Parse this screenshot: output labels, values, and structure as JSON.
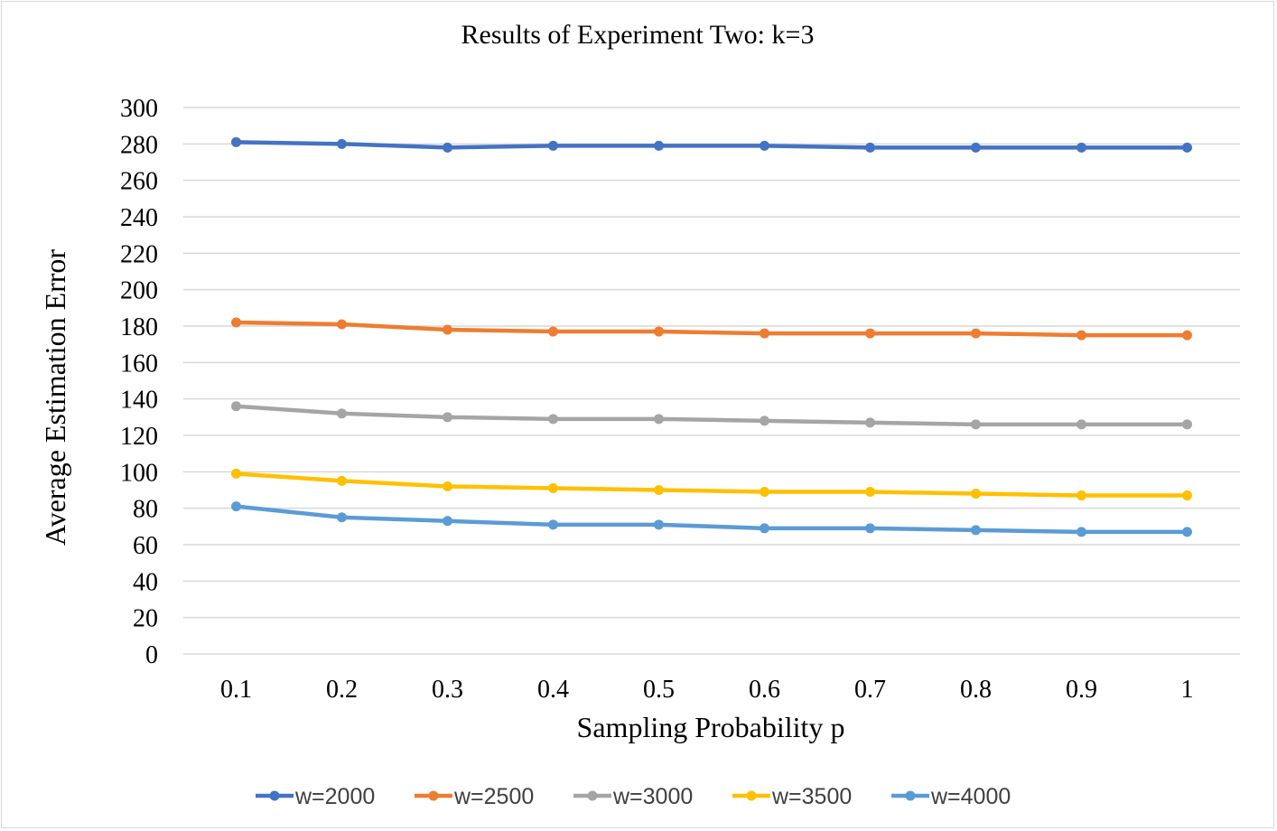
{
  "chart_data": {
    "type": "line",
    "title": "Results of Experiment Two: k=3",
    "xlabel": "Sampling Probability p",
    "ylabel": "Average Estimation Error",
    "categories": [
      "0.1",
      "0.2",
      "0.3",
      "0.4",
      "0.5",
      "0.6",
      "0.7",
      "0.8",
      "0.9",
      "1"
    ],
    "ylim": [
      0,
      300
    ],
    "yticks": [
      "0",
      "20",
      "40",
      "60",
      "80",
      "100",
      "120",
      "140",
      "160",
      "180",
      "200",
      "220",
      "240",
      "260",
      "280",
      "300"
    ],
    "grid": true,
    "legend_position": "bottom",
    "series": [
      {
        "name": "w=2000",
        "color": "#4472c4",
        "values": [
          281,
          280,
          278,
          279,
          279,
          279,
          278,
          278,
          278,
          278
        ]
      },
      {
        "name": "w=2500",
        "color": "#ed7d31",
        "values": [
          182,
          181,
          178,
          177,
          177,
          176,
          176,
          176,
          175,
          175
        ]
      },
      {
        "name": "w=3000",
        "color": "#a5a5a5",
        "values": [
          136,
          132,
          130,
          129,
          129,
          128,
          127,
          126,
          126,
          126
        ]
      },
      {
        "name": "w=3500",
        "color": "#ffc000",
        "values": [
          99,
          95,
          92,
          91,
          90,
          89,
          89,
          88,
          87,
          87
        ]
      },
      {
        "name": "w=4000",
        "color": "#5b9bd5",
        "values": [
          81,
          75,
          73,
          71,
          71,
          69,
          69,
          68,
          67,
          67
        ]
      }
    ]
  }
}
